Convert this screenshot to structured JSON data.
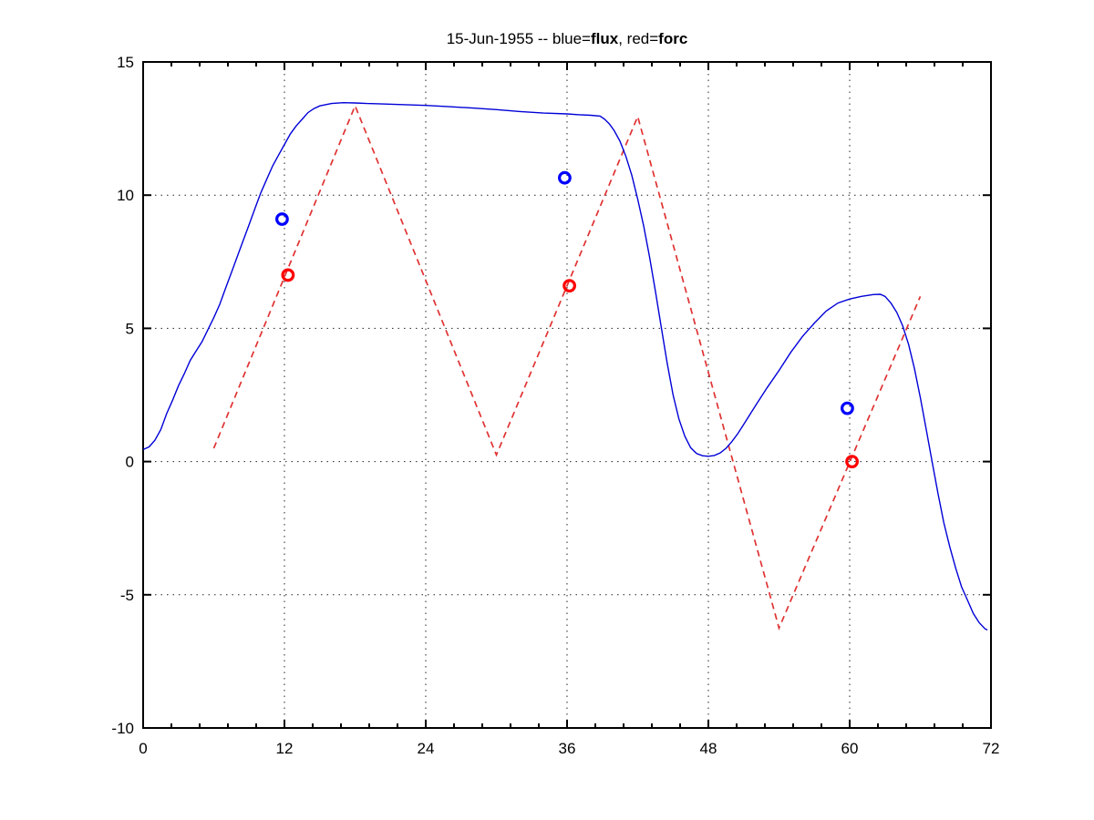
{
  "title": {
    "full": "15-Jun-1955 -- blue=flux, red=forc",
    "prefix": "15-Jun-1955 -- blue=",
    "flux_bold": "flux",
    "mid": ", red=",
    "forc_bold": "forc"
  },
  "colors": {
    "flux_line": "#0000d8",
    "flux_marker": "#0000ff",
    "forc_line": "#e03232",
    "forc_marker": "#ff0000",
    "axis": "#000000",
    "grid": "#222222",
    "background": "#ffffff"
  },
  "chart_data": {
    "type": "line",
    "title": "15-Jun-1955 -- blue=flux, red=forc",
    "xlabel": "",
    "ylabel": "",
    "xlim": [
      0,
      72
    ],
    "ylim": [
      -10,
      15
    ],
    "grid": "dotted at major ticks, boxed axes, inward ticks",
    "legend_position": "none (legend encoded in title)",
    "xticks": {
      "major": [
        0,
        12,
        24,
        36,
        48,
        60,
        72
      ],
      "labels": [
        "0",
        "12",
        "24",
        "36",
        "48",
        "60",
        "72"
      ],
      "minor_step": 2.4
    },
    "yticks": {
      "major": [
        15,
        10,
        5,
        0,
        -5,
        -10
      ],
      "labels": [
        "15",
        "10",
        "5",
        "0",
        "-5",
        "-10"
      ]
    },
    "series": [
      {
        "name": "forc",
        "style": "dashed",
        "points": [
          [
            6,
            0.5
          ],
          [
            18,
            13.35
          ],
          [
            30,
            0.25
          ],
          [
            42,
            12.95
          ],
          [
            54,
            -6.25
          ],
          [
            66,
            6.2
          ]
        ]
      },
      {
        "name": "flux",
        "style": "solid",
        "points": [
          [
            0,
            0.45
          ],
          [
            0.5,
            0.55
          ],
          [
            1,
            0.8
          ],
          [
            1.5,
            1.2
          ],
          [
            2,
            1.8
          ],
          [
            2.5,
            2.3
          ],
          [
            3,
            2.85
          ],
          [
            3.5,
            3.3
          ],
          [
            4,
            3.8
          ],
          [
            4.5,
            4.15
          ],
          [
            5,
            4.5
          ],
          [
            5.5,
            4.95
          ],
          [
            6,
            5.4
          ],
          [
            6.5,
            5.9
          ],
          [
            7,
            6.5
          ],
          [
            7.5,
            7.1
          ],
          [
            8,
            7.7
          ],
          [
            8.5,
            8.3
          ],
          [
            9,
            8.9
          ],
          [
            9.5,
            9.5
          ],
          [
            10,
            10.1
          ],
          [
            10.5,
            10.6
          ],
          [
            11,
            11.1
          ],
          [
            11.5,
            11.5
          ],
          [
            12,
            11.9
          ],
          [
            12.5,
            12.3
          ],
          [
            13,
            12.6
          ],
          [
            13.5,
            12.85
          ],
          [
            14,
            13.1
          ],
          [
            14.5,
            13.25
          ],
          [
            15,
            13.35
          ],
          [
            16,
            13.44
          ],
          [
            17,
            13.47
          ],
          [
            18,
            13.46
          ],
          [
            19,
            13.44
          ],
          [
            20,
            13.43
          ],
          [
            22,
            13.4
          ],
          [
            24,
            13.37
          ],
          [
            26,
            13.32
          ],
          [
            28,
            13.27
          ],
          [
            30,
            13.21
          ],
          [
            32,
            13.14
          ],
          [
            34,
            13.08
          ],
          [
            36,
            13.05
          ],
          [
            37,
            13.02
          ],
          [
            38,
            13.0
          ],
          [
            38.8,
            12.97
          ],
          [
            39.2,
            12.85
          ],
          [
            39.6,
            12.67
          ],
          [
            40,
            12.42
          ],
          [
            40.5,
            12.02
          ],
          [
            41,
            11.45
          ],
          [
            41.5,
            10.75
          ],
          [
            42,
            9.85
          ],
          [
            42.5,
            8.85
          ],
          [
            43,
            7.7
          ],
          [
            43.5,
            6.4
          ],
          [
            44,
            5.05
          ],
          [
            44.5,
            3.7
          ],
          [
            45,
            2.5
          ],
          [
            45.5,
            1.6
          ],
          [
            46,
            0.95
          ],
          [
            46.5,
            0.52
          ],
          [
            47,
            0.3
          ],
          [
            47.5,
            0.22
          ],
          [
            48,
            0.2
          ],
          [
            48.5,
            0.23
          ],
          [
            49,
            0.32
          ],
          [
            49.5,
            0.5
          ],
          [
            50,
            0.75
          ],
          [
            50.5,
            1.05
          ],
          [
            51,
            1.4
          ],
          [
            52,
            2.1
          ],
          [
            53,
            2.78
          ],
          [
            54,
            3.42
          ],
          [
            55,
            4.1
          ],
          [
            56,
            4.7
          ],
          [
            57,
            5.2
          ],
          [
            58,
            5.65
          ],
          [
            59,
            5.95
          ],
          [
            60,
            6.1
          ],
          [
            61,
            6.2
          ],
          [
            62,
            6.27
          ],
          [
            62.6,
            6.28
          ],
          [
            63,
            6.2
          ],
          [
            63.5,
            5.95
          ],
          [
            64,
            5.6
          ],
          [
            64.5,
            5.1
          ],
          [
            65,
            4.4
          ],
          [
            65.5,
            3.5
          ],
          [
            66,
            2.4
          ],
          [
            66.5,
            1.2
          ],
          [
            67,
            0.0
          ],
          [
            67.5,
            -1.2
          ],
          [
            68,
            -2.3
          ],
          [
            68.5,
            -3.2
          ],
          [
            69,
            -4.0
          ],
          [
            69.5,
            -4.7
          ],
          [
            70,
            -5.2
          ],
          [
            70.5,
            -5.7
          ],
          [
            71,
            -6.05
          ],
          [
            71.5,
            -6.28
          ],
          [
            71.7,
            -6.32
          ]
        ]
      }
    ],
    "markers": [
      {
        "name": "flux-markers",
        "shape": "open-circle",
        "points": [
          [
            11.8,
            9.1
          ],
          [
            35.8,
            10.65
          ],
          [
            59.8,
            2.0
          ]
        ]
      },
      {
        "name": "forc-markers",
        "shape": "open-circle",
        "points": [
          [
            12.3,
            7.0
          ],
          [
            36.2,
            6.6
          ],
          [
            60.2,
            0.0
          ]
        ]
      }
    ]
  }
}
